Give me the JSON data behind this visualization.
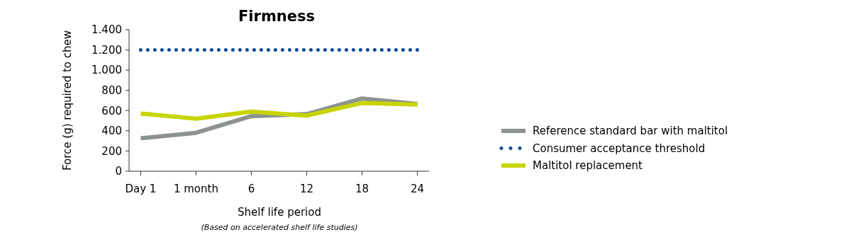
{
  "chart_data": {
    "type": "line",
    "title": "Firmness",
    "xlabel": "Shelf life period",
    "ylabel": "Force (g) required to chew",
    "annotations": [
      "(Based on accelerated shelf life studies)"
    ],
    "categories": [
      "Day 1",
      "1 month",
      "6",
      "12",
      "18",
      "24"
    ],
    "series": [
      {
        "name": "Reference standard bar with maltitol",
        "color": "#8c9391",
        "values": [
          325,
          380,
          545,
          565,
          720,
          665
        ]
      },
      {
        "name": "Consumer acceptance threshold",
        "color": "#0a4a97",
        "line_style": "dotted",
        "values": [
          1200,
          1200,
          1200,
          1200,
          1200,
          1200
        ]
      },
      {
        "name": "Maltitol replacement",
        "color": "#c8d400",
        "values": [
          570,
          520,
          590,
          550,
          675,
          660
        ]
      }
    ],
    "ylim": [
      0,
      1400
    ],
    "yticks": [
      0,
      200,
      400,
      600,
      800,
      {
        "value": 1000,
        "label": "1.000"
      },
      {
        "value": 1200,
        "label": "1.200"
      },
      {
        "value": 1400,
        "label": "1.400"
      }
    ],
    "grid": false,
    "legend": "right",
    "line_style": "solid",
    "marker": "none"
  }
}
